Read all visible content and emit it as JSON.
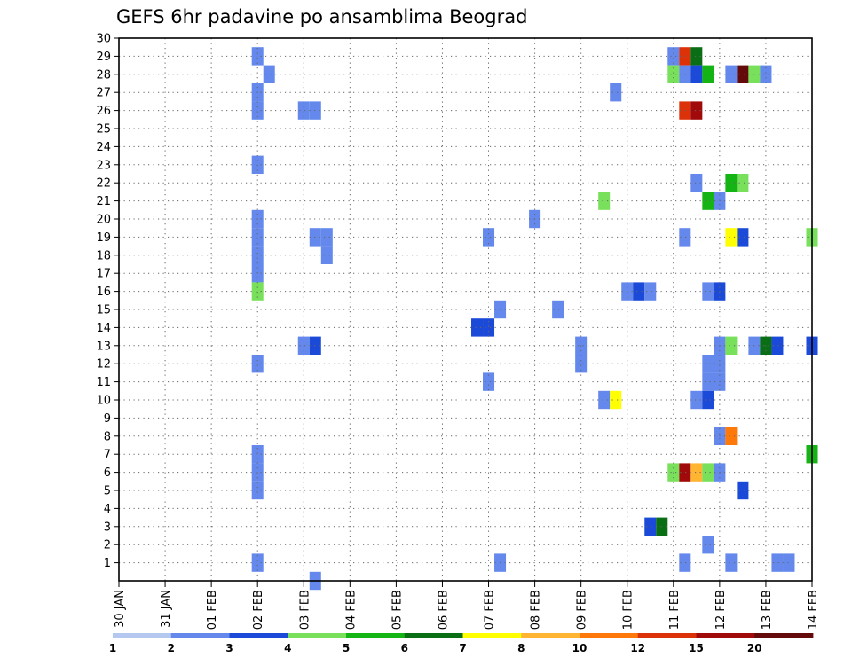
{
  "chart_data": {
    "type": "heatmap",
    "title": "GEFS 6hr padavine po ansamblima Beograd",
    "x_tick_labels": [
      "30 JAN",
      "31 JAN",
      "01 FEB",
      "02 FEB",
      "03 FEB",
      "04 FEB",
      "05 FEB",
      "06 FEB",
      "07 FEB",
      "08 FEB",
      "09 FEB",
      "10 FEB",
      "11 FEB",
      "12 FEB",
      "13 FEB",
      "14 FEB"
    ],
    "x_range_days": [
      0,
      15
    ],
    "y_range": [
      0,
      30
    ],
    "y_ticks": [
      1,
      2,
      3,
      4,
      5,
      6,
      7,
      8,
      9,
      10,
      11,
      12,
      13,
      14,
      15,
      16,
      17,
      18,
      19,
      20,
      21,
      22,
      23,
      24,
      25,
      26,
      27,
      28,
      29,
      30
    ],
    "grid": true,
    "colorbar": {
      "levels": [
        "1",
        "2",
        "3",
        "4",
        "5",
        "6",
        "7",
        "8",
        "10",
        "12",
        "15",
        "20"
      ],
      "colors": [
        "#b4c8f0",
        "#6488ec",
        "#1c4ad8",
        "#78e05a",
        "#14b414",
        "#0a6e14",
        "#ffff00",
        "#ffb432",
        "#ff780a",
        "#dc320a",
        "#a00a0a",
        "#640a0a"
      ]
    },
    "cells": [
      [
        3.0,
        29,
        1
      ],
      [
        3.25,
        28,
        1
      ],
      [
        3.0,
        27,
        1
      ],
      [
        3.0,
        26,
        1
      ],
      [
        3.0,
        23,
        1
      ],
      [
        3.0,
        20,
        1
      ],
      [
        3.0,
        19,
        1
      ],
      [
        3.0,
        18,
        1
      ],
      [
        3.0,
        17,
        1
      ],
      [
        3.0,
        16,
        3
      ],
      [
        3.0,
        12,
        1
      ],
      [
        3.0,
        7,
        1
      ],
      [
        3.0,
        6,
        1
      ],
      [
        3.0,
        5,
        1
      ],
      [
        3.0,
        1,
        1
      ],
      [
        4.0,
        26,
        1
      ],
      [
        4.25,
        26,
        1
      ],
      [
        4.0,
        13,
        1
      ],
      [
        4.25,
        13,
        2
      ],
      [
        4.25,
        0,
        1
      ],
      [
        4.25,
        19,
        1
      ],
      [
        4.5,
        19,
        1
      ],
      [
        4.5,
        18,
        1
      ],
      [
        7.75,
        14,
        2
      ],
      [
        8.0,
        14,
        2
      ],
      [
        8.0,
        19,
        1
      ],
      [
        8.0,
        11,
        1
      ],
      [
        8.25,
        15,
        1
      ],
      [
        8.25,
        1,
        1
      ],
      [
        9.0,
        20,
        1
      ],
      [
        9.5,
        15,
        1
      ],
      [
        10.0,
        13,
        1
      ],
      [
        10.0,
        12,
        1
      ],
      [
        10.5,
        21,
        3
      ],
      [
        10.5,
        10,
        1
      ],
      [
        10.75,
        10,
        6
      ],
      [
        10.75,
        27,
        1
      ],
      [
        11.0,
        16,
        1
      ],
      [
        11.25,
        16,
        2
      ],
      [
        11.5,
        16,
        1
      ],
      [
        11.5,
        3,
        2
      ],
      [
        11.75,
        3,
        5
      ],
      [
        12.0,
        29,
        1
      ],
      [
        12.25,
        29,
        9
      ],
      [
        12.5,
        29,
        5
      ],
      [
        12.0,
        28,
        3
      ],
      [
        12.25,
        28,
        1
      ],
      [
        12.5,
        28,
        2
      ],
      [
        12.75,
        28,
        4
      ],
      [
        13.25,
        28,
        1
      ],
      [
        13.5,
        28,
        11
      ],
      [
        13.75,
        28,
        3
      ],
      [
        14.0,
        28,
        1
      ],
      [
        12.25,
        26,
        9
      ],
      [
        12.5,
        26,
        10
      ],
      [
        12.5,
        22,
        1
      ],
      [
        13.25,
        22,
        4
      ],
      [
        13.5,
        22,
        3
      ],
      [
        12.75,
        21,
        4
      ],
      [
        13.0,
        21,
        1
      ],
      [
        12.25,
        19,
        1
      ],
      [
        13.25,
        19,
        6
      ],
      [
        13.5,
        19,
        2
      ],
      [
        15.0,
        19,
        3
      ],
      [
        12.75,
        16,
        1
      ],
      [
        13.0,
        16,
        2
      ],
      [
        13.0,
        13,
        1
      ],
      [
        13.25,
        13,
        3
      ],
      [
        13.75,
        13,
        1
      ],
      [
        14.0,
        13,
        5
      ],
      [
        14.25,
        13,
        2
      ],
      [
        15.0,
        13,
        2
      ],
      [
        12.75,
        11,
        1
      ],
      [
        13.0,
        11,
        1
      ],
      [
        12.75,
        12,
        1
      ],
      [
        13.0,
        12,
        1
      ],
      [
        12.5,
        10,
        1
      ],
      [
        12.75,
        10,
        2
      ],
      [
        13.0,
        8,
        1
      ],
      [
        13.25,
        8,
        8
      ],
      [
        15.0,
        7,
        4
      ],
      [
        12.0,
        6,
        3
      ],
      [
        12.25,
        6,
        10
      ],
      [
        12.5,
        6,
        7
      ],
      [
        12.75,
        6,
        3
      ],
      [
        13.0,
        6,
        1
      ],
      [
        13.5,
        5,
        2
      ],
      [
        12.75,
        2,
        1
      ],
      [
        12.25,
        1,
        1
      ],
      [
        13.25,
        1,
        1
      ],
      [
        14.25,
        1,
        1
      ],
      [
        14.5,
        1,
        1
      ]
    ]
  }
}
